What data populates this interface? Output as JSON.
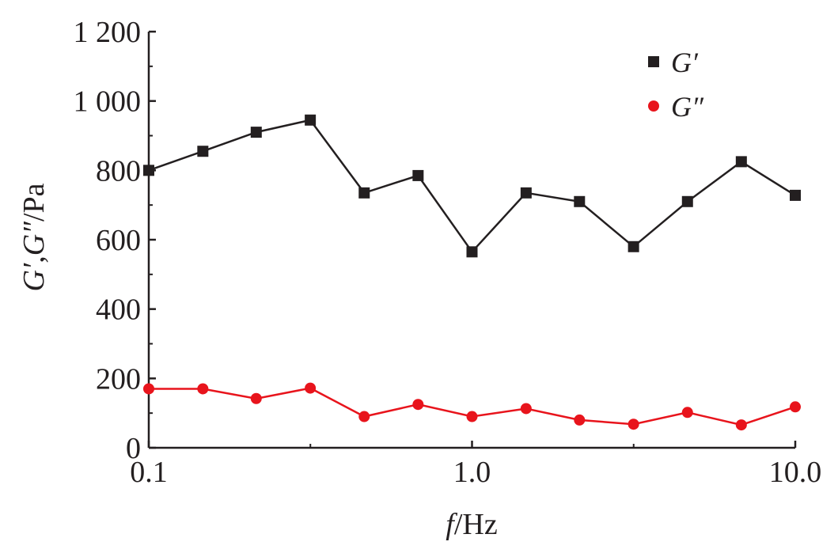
{
  "chart_data": {
    "type": "line",
    "x_scale": "log",
    "xlim": [
      0.1,
      10.0
    ],
    "ylim": [
      0,
      1200
    ],
    "x_ticks": [
      0.1,
      1.0,
      10.0
    ],
    "x_tick_labels": [
      "0.1",
      "1.0",
      "10.0"
    ],
    "y_ticks": [
      0,
      200,
      400,
      600,
      800,
      1000,
      1200
    ],
    "y_tick_labels": [
      "0",
      "200",
      "400",
      "600",
      "800",
      "1 000",
      "1 200"
    ],
    "xlabel_italic": "f",
    "xlabel_rest": "/Hz",
    "ylabel_part1": "G′",
    "ylabel_sep": ",",
    "ylabel_part2": "G″",
    "ylabel_unit": "/Pa",
    "legend_position": "top-right",
    "grid": false,
    "x": [
      0.1,
      0.147,
      0.215,
      0.316,
      0.464,
      0.681,
      1.0,
      1.47,
      2.15,
      3.16,
      4.64,
      6.81,
      10.0
    ],
    "series": [
      {
        "name": "G′",
        "marker": "square",
        "color": "#231f20",
        "values": [
          800,
          855,
          910,
          945,
          735,
          785,
          565,
          735,
          710,
          580,
          710,
          825,
          728
        ]
      },
      {
        "name": "G″",
        "marker": "circle",
        "color": "#e8141c",
        "values": [
          170,
          170,
          142,
          172,
          90,
          125,
          90,
          113,
          80,
          68,
          102,
          66,
          118
        ]
      }
    ]
  }
}
